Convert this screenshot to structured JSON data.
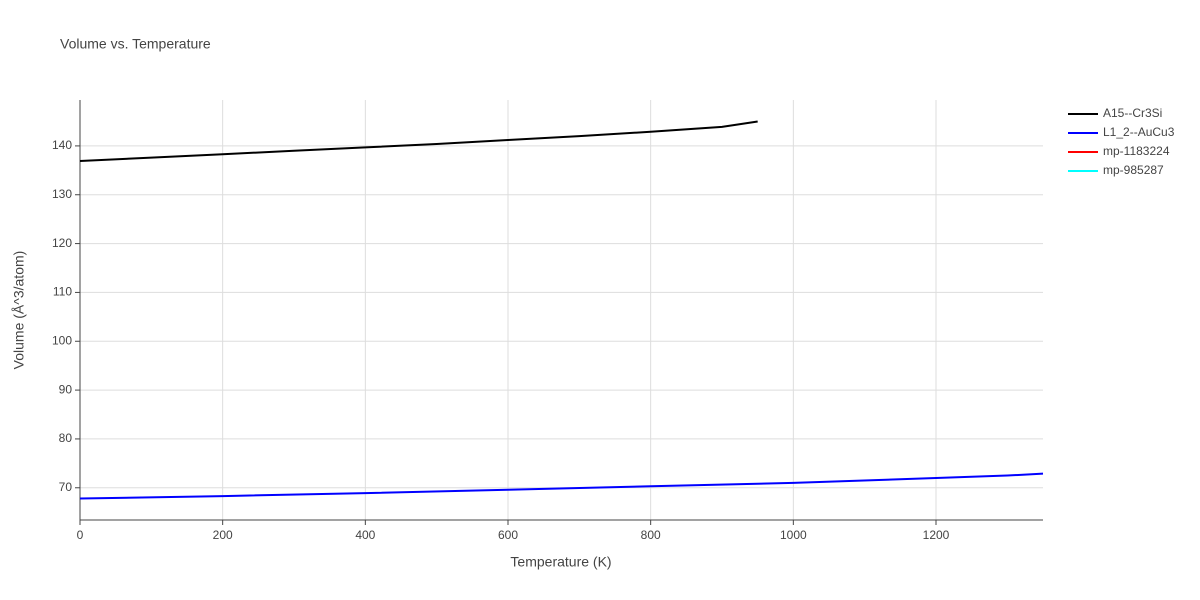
{
  "chart_data": {
    "type": "line",
    "title": "Volume vs. Temperature",
    "xlabel": "Temperature (K)",
    "ylabel": "Volume (Å^3/atom)",
    "xlim": [
      0,
      1350
    ],
    "ylim": [
      63.4,
      149.4
    ],
    "xticks": [
      0,
      200,
      400,
      600,
      800,
      1000,
      1200
    ],
    "yticks": [
      70,
      80,
      90,
      100,
      110,
      120,
      130,
      140
    ],
    "grid": true,
    "legend": "right",
    "series": [
      {
        "name": "A15--Cr3Si",
        "color": "#000000",
        "x": [
          0,
          100,
          200,
          300,
          400,
          500,
          600,
          700,
          800,
          900,
          950
        ],
        "values": [
          136.9,
          137.6,
          138.3,
          139.0,
          139.7,
          140.4,
          141.2,
          142.0,
          142.9,
          143.9,
          145.0
        ]
      },
      {
        "name": "L1_2--AuCu3",
        "color": "#0000ff",
        "x": [
          0,
          200,
          400,
          600,
          800,
          1000,
          1200,
          1300,
          1350
        ],
        "values": [
          67.8,
          68.3,
          68.9,
          69.6,
          70.3,
          71.0,
          72.0,
          72.5,
          72.9
        ]
      },
      {
        "name": "mp-1183224",
        "color": "#ff0000",
        "x": [],
        "values": []
      },
      {
        "name": "mp-985287",
        "color": "#00ffff",
        "x": [],
        "values": []
      }
    ]
  }
}
